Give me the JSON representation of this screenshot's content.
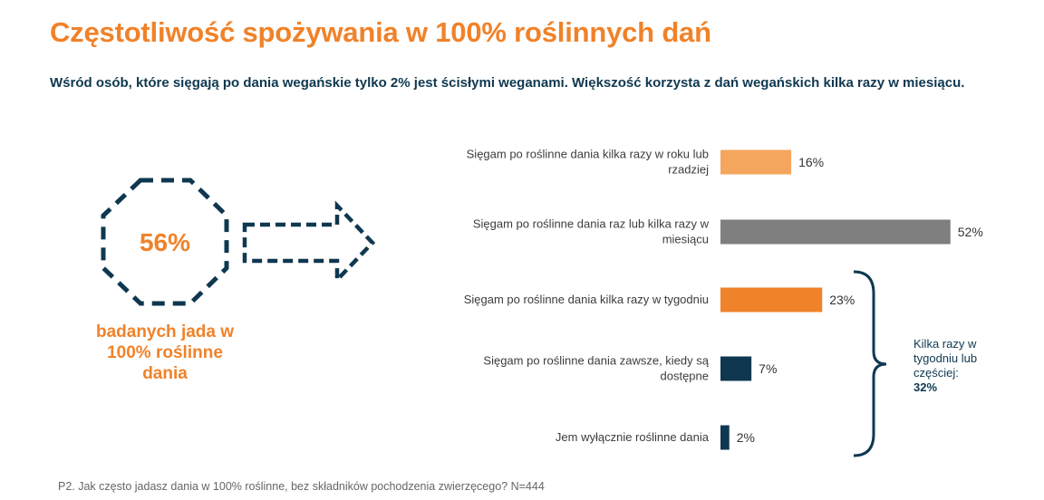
{
  "title": "Częstotliwość spożywania w 100% roślinnych dań",
  "subtitle": "Wśród osób, które sięgają po dania wegańskie tylko 2% jest ścisłymi weganami. Większość korzysta z dań wegańskich kilka razy w miesiącu.",
  "highlight": {
    "value": "56%",
    "caption": "badanych jada w 100% roślinne dania"
  },
  "colors": {
    "accent": "#f08229",
    "light_orange": "#f4a65e",
    "gray": "#7f7f7f",
    "navy": "#0f3850"
  },
  "chart_data": {
    "type": "bar",
    "orientation": "horizontal",
    "categories": [
      "Sięgam po roślinne dania kilka razy w roku lub rzadziej",
      "Sięgam po roślinne dania raz lub kilka razy w miesiącu",
      "Sięgam po roślinne dania kilka razy w tygodniu",
      "Sięgam po roślinne dania zawsze, kiedy są dostępne",
      "Jem wyłącznie roślinne dania"
    ],
    "values": [
      16,
      52,
      23,
      7,
      2
    ],
    "value_labels": [
      "16%",
      "52%",
      "23%",
      "7%",
      "2%"
    ],
    "bar_colors": [
      "#f4a65e",
      "#7f7f7f",
      "#f08229",
      "#0f3850",
      "#0f3850"
    ],
    "unit": "%",
    "grid": false,
    "legend": "none",
    "annotation": {
      "text": "Kilka razy w tygodniu lub częściej:",
      "value": "32%",
      "brace_covers": [
        2,
        3,
        4
      ]
    }
  },
  "footnote": "P2. Jak często jadasz dania w 100% roślinne, bez składników pochodzenia zwierzęcego? N=444"
}
